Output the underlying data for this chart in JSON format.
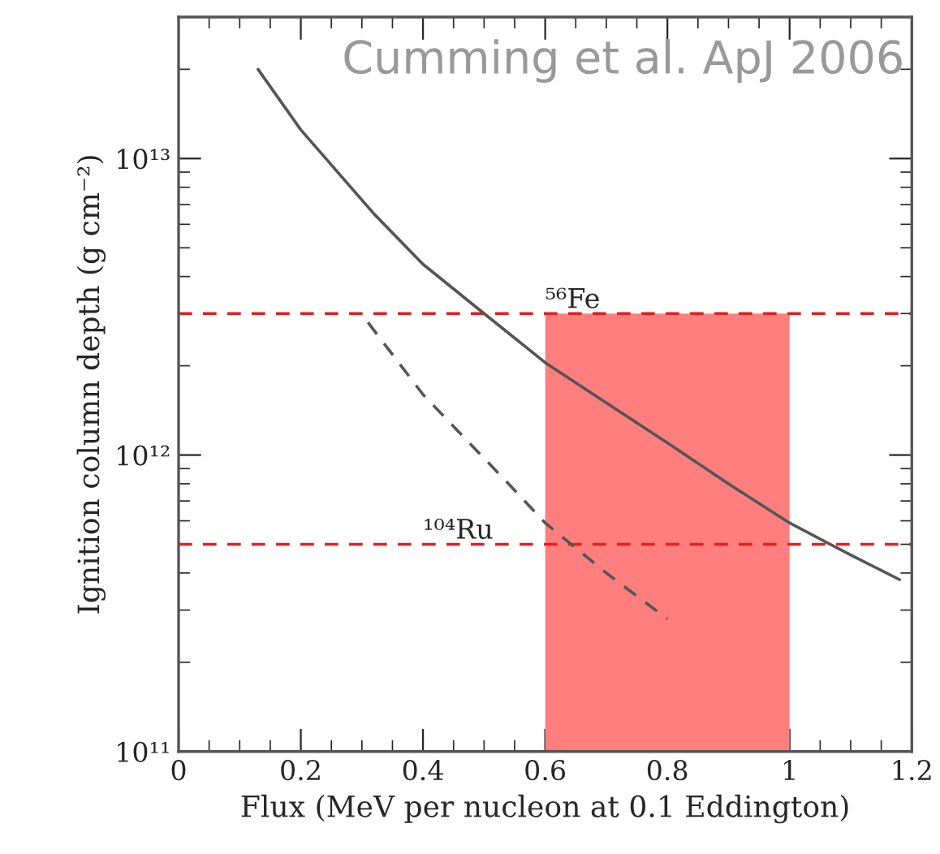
{
  "chart_data": {
    "type": "line",
    "xlabel": "Flux (MeV per nucleon at 0.1 Eddington)",
    "ylabel": "Ignition column depth (g cm⁻²)",
    "log": "y",
    "xlim": [
      0,
      1.2
    ],
    "xticks": [
      0,
      0.2,
      0.4,
      0.6,
      0.8,
      1,
      1.2
    ],
    "ylim": [
      100000000000.0,
      30000000000000.0
    ],
    "yticks": [
      {
        "value": 100000000000.0,
        "label": "10¹¹"
      },
      {
        "value": 1000000000000.0,
        "label": "10¹²"
      },
      {
        "value": 10000000000000.0,
        "label": "10¹³"
      }
    ],
    "grid": false,
    "series": [
      {
        "type": "area",
        "color": "#ff7f7f",
        "x": [
          0.6,
          1.0
        ],
        "values": [
          3000000000000.0,
          3000000000000.0
        ]
      },
      {
        "color": "#555555",
        "line_style": "solid",
        "x": [
          0.13,
          0.2,
          0.32,
          0.4,
          0.5,
          0.6,
          0.7,
          0.8,
          0.9,
          1.0,
          1.1,
          1.18
        ],
        "values": [
          20000000000000.0,
          12500000000000.0,
          6500000000000.0,
          4400000000000.0,
          3000000000000.0,
          2050000000000.0,
          1500000000000.0,
          1100000000000.0,
          800000000000.0,
          590000000000.0,
          460000000000.0,
          380000000000.0
        ]
      },
      {
        "color": "#555555",
        "line_style": "dashed",
        "x": [
          0.31,
          0.4,
          0.54,
          0.6,
          0.7,
          0.8
        ],
        "values": [
          2800000000000.0,
          1600000000000.0,
          800000000000.0,
          590000000000.0,
          400000000000.0,
          280000000000.0
        ]
      }
    ],
    "ref_lines": [
      {
        "axis": "y",
        "value": 3000000000000.0,
        "color": "#e02020",
        "line_style": "dashed"
      },
      {
        "axis": "y",
        "value": 500000000000.0,
        "color": "#e02020",
        "line_style": "dashed"
      }
    ],
    "annotations": [
      {
        "text": "⁵⁶Fe",
        "x": 0.6,
        "y": 3000000000000.0
      },
      {
        "text": "¹⁰⁴Ru",
        "x": 0.4,
        "y": 500000000000.0
      },
      "Cumming et al. ApJ 2006"
    ]
  }
}
